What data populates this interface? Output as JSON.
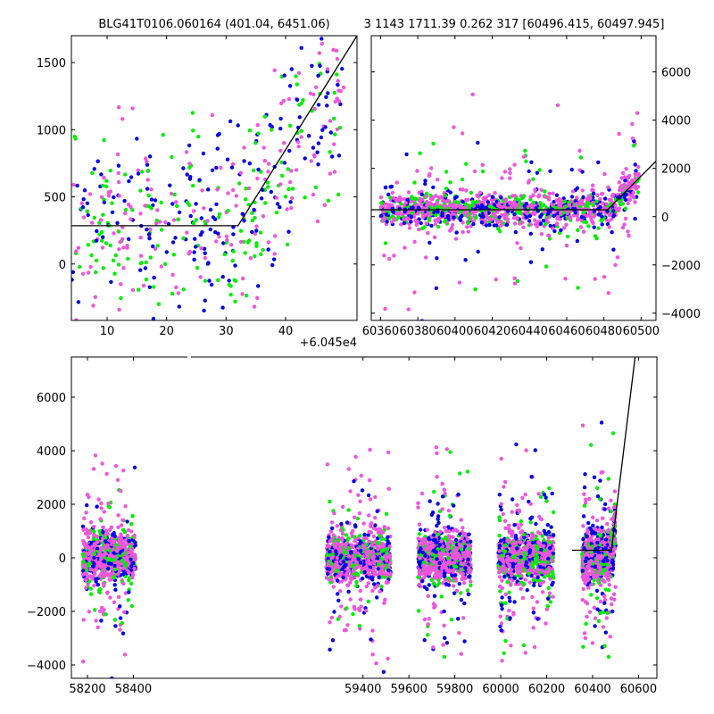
{
  "titles": {
    "left": "BLG41T0106.060164 (401.04, 6451.06)",
    "right": "3 1143 1711.39 0.262 317 [60496.415, 60497.945]"
  },
  "colors": {
    "series_a": "#0000e6",
    "series_b": "#00ee00",
    "series_c": "#ee55dd",
    "model": "#000000"
  },
  "chart_data": [
    {
      "type": "scatter",
      "panel": "top-left",
      "xlim": [
        60454,
        60502
      ],
      "ylim": [
        -420,
        1700
      ],
      "x_offset_label": "+6.045e4",
      "xticks": [
        60460,
        60470,
        60480,
        60490
      ],
      "xtick_labels": [
        "10",
        "20",
        "30",
        "40"
      ],
      "yticks": [
        0,
        500,
        1000,
        1500
      ],
      "ytick_labels": [
        "0",
        "500",
        "1000",
        "1500"
      ],
      "model_line": {
        "x": [
          60454,
          60482,
          60502
        ],
        "y": [
          285,
          285,
          1700
        ]
      },
      "series_colors": [
        "#0000e6",
        "#00ee00",
        "#ee55dd"
      ]
    },
    {
      "type": "scatter",
      "panel": "top-right",
      "xlim": [
        60355,
        60508
      ],
      "ylim": [
        -4300,
        7500
      ],
      "xticks": [
        60360,
        60380,
        60400,
        60420,
        60440,
        60460,
        60480,
        60500
      ],
      "xtick_labels": [
        "60360",
        "60380",
        "60400",
        "60420",
        "60440",
        "60460",
        "60480",
        "60500"
      ],
      "yticks": [
        -4000,
        -2000,
        0,
        2000,
        4000,
        6000
      ],
      "ytick_labels": [
        "−4000",
        "−2000",
        "0",
        "2000",
        "4000",
        "6000"
      ],
      "model_line": {
        "x": [
          60355,
          60482,
          60508
        ],
        "y": [
          285,
          285,
          2300
        ]
      },
      "series_colors": [
        "#0000e6",
        "#00ee00",
        "#ee55dd"
      ]
    },
    {
      "type": "scatter",
      "panel": "bottom",
      "xlim": [
        58130,
        60680
      ],
      "ylim": [
        -4500,
        7500
      ],
      "xticks": [
        58200,
        58400,
        59400,
        59600,
        59800,
        60000,
        60200,
        60400,
        60600
      ],
      "xtick_labels": [
        "58200",
        "58400",
        "59400",
        "59600",
        "59800",
        "60000",
        "60200",
        "60400",
        "60600"
      ],
      "yticks": [
        -4000,
        -2000,
        0,
        2000,
        4000,
        6000
      ],
      "ytick_labels": [
        "−4000",
        "−2000",
        "0",
        "2000",
        "4000",
        "6000"
      ],
      "seasons": [
        [
          58180,
          58410
        ],
        [
          59240,
          59520
        ],
        [
          59640,
          59870
        ],
        [
          59990,
          60230
        ],
        [
          60355,
          60500
        ]
      ],
      "model_line": {
        "x": [
          60310,
          60482,
          60585
        ],
        "y": [
          285,
          285,
          7500
        ]
      },
      "series_colors": [
        "#0000e6",
        "#00ee00",
        "#ee55dd"
      ]
    }
  ]
}
